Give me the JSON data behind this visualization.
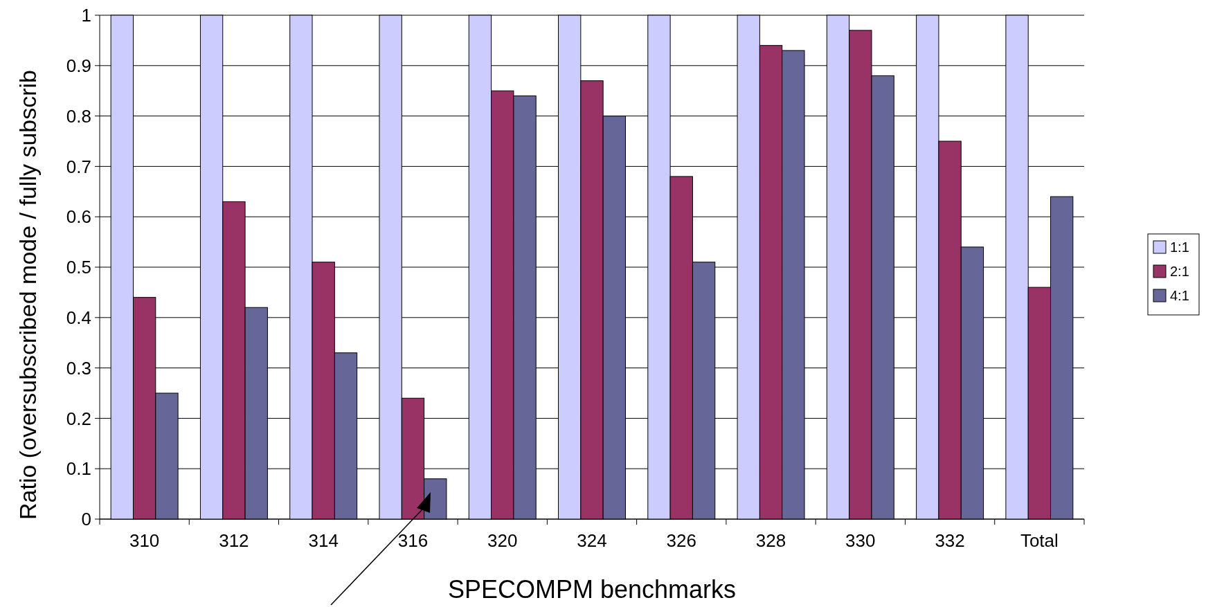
{
  "chart_data": {
    "type": "bar",
    "xlabel": "SPECOMPM benchmarks",
    "ylabel": "Ratio (oversubscribed mode / fully subscrib",
    "categories": [
      "310",
      "312",
      "314",
      "316",
      "320",
      "324",
      "326",
      "328",
      "330",
      "332",
      "Total"
    ],
    "series": [
      {
        "name": "1:1",
        "color": "#ccccff",
        "values": [
          1,
          1,
          1,
          1,
          1,
          1,
          1,
          1,
          1,
          1,
          1
        ]
      },
      {
        "name": "2:1",
        "color": "#993366",
        "values": [
          0.44,
          0.63,
          0.51,
          0.24,
          0.85,
          0.87,
          0.68,
          0.94,
          0.97,
          0.75,
          0.46
        ]
      },
      {
        "name": "4:1",
        "color": "#666699",
        "values": [
          0.25,
          0.42,
          0.33,
          0.08,
          0.84,
          0.8,
          0.51,
          0.93,
          0.88,
          0.54,
          0.64
        ]
      }
    ],
    "ylim": [
      0,
      1
    ],
    "yticks": [
      0,
      0.1,
      0.2,
      0.3,
      0.4,
      0.5,
      0.6,
      0.7,
      0.8,
      0.9,
      1
    ],
    "grid": "y",
    "legend": "right"
  }
}
